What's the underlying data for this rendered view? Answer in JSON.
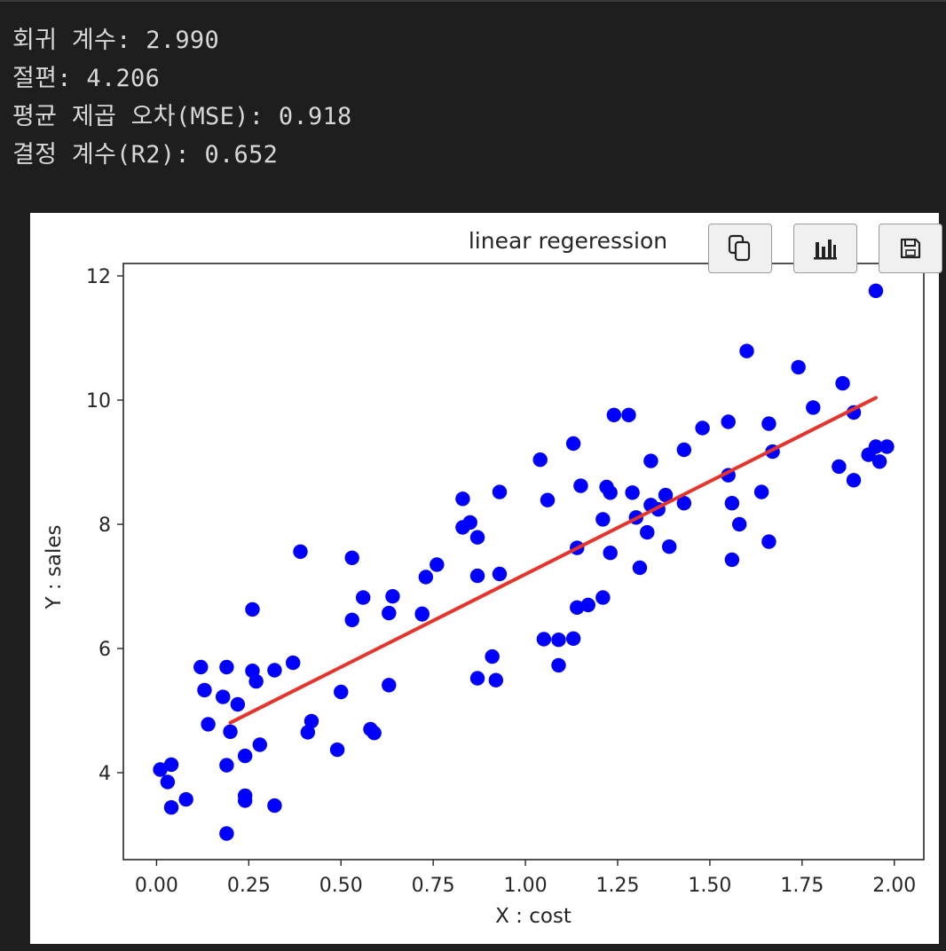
{
  "output": {
    "lines": [
      "회귀 계수: 2.990",
      "절편: 4.206",
      "평균 제곱 오차(MSE): 0.918",
      "결정 계수(R2): 0.652"
    ]
  },
  "toolbar": {
    "icons": [
      "copy-icon",
      "chart-icon",
      "save-icon"
    ]
  },
  "colors": {
    "background": "#1e1e1e",
    "text": "#d8d8d8",
    "points": "#0000ff",
    "line": "#e8332a"
  },
  "chart_data": {
    "type": "scatter",
    "title": "linear regeression",
    "xlabel": "X : cost",
    "ylabel": "Y : sales",
    "xlim": [
      -0.09,
      2.08
    ],
    "ylim": [
      2.6,
      12.2
    ],
    "xticks": [
      "0.00",
      "0.25",
      "0.50",
      "0.75",
      "1.00",
      "1.25",
      "1.50",
      "1.75",
      "2.00"
    ],
    "xtick_values": [
      0,
      0.25,
      0.5,
      0.75,
      1.0,
      1.25,
      1.5,
      1.75,
      2.0
    ],
    "yticks": [
      "4",
      "6",
      "8",
      "10",
      "12"
    ],
    "ytick_values": [
      4,
      6,
      8,
      10,
      12
    ],
    "grid": false,
    "series": [
      {
        "kind": "points",
        "color": "#0000ff",
        "x": [
          0.01,
          0.04,
          0.04,
          0.03,
          0.08,
          0.12,
          0.13,
          0.14,
          0.18,
          0.19,
          0.19,
          0.19,
          0.2,
          0.22,
          0.24,
          0.24,
          0.24,
          0.26,
          0.26,
          0.27,
          0.28,
          0.32,
          0.32,
          0.37,
          0.39,
          0.41,
          0.42,
          0.49,
          0.5,
          0.53,
          0.53,
          0.56,
          0.58,
          0.59,
          0.63,
          0.63,
          0.64,
          0.72,
          0.72,
          0.73,
          0.76,
          0.83,
          0.83,
          0.85,
          0.87,
          0.87,
          0.87,
          0.91,
          0.92,
          0.93,
          0.93,
          1.04,
          1.05,
          1.06,
          1.09,
          1.09,
          1.13,
          1.13,
          1.14,
          1.14,
          1.15,
          1.17,
          1.21,
          1.21,
          1.22,
          1.23,
          1.23,
          1.24,
          1.28,
          1.29,
          1.3,
          1.31,
          1.33,
          1.34,
          1.34,
          1.36,
          1.38,
          1.39,
          1.43,
          1.43,
          1.48,
          1.55,
          1.55,
          1.56,
          1.56,
          1.58,
          1.6,
          1.64,
          1.66,
          1.66,
          1.67,
          1.74,
          1.78,
          1.85,
          1.86,
          1.89,
          1.89,
          1.93,
          1.95,
          1.95,
          1.96,
          1.98
        ],
        "y": [
          4.05,
          4.13,
          3.44,
          3.85,
          3.57,
          5.7,
          5.33,
          4.78,
          5.22,
          3.02,
          4.12,
          5.7,
          4.66,
          5.1,
          4.27,
          3.55,
          3.63,
          5.64,
          6.63,
          5.47,
          4.45,
          3.47,
          5.65,
          5.77,
          7.56,
          4.65,
          4.83,
          4.37,
          5.3,
          7.46,
          6.46,
          6.82,
          4.7,
          4.64,
          6.57,
          5.41,
          6.84,
          6.56,
          6.55,
          7.15,
          7.35,
          7.95,
          8.41,
          8.03,
          7.79,
          5.52,
          7.17,
          5.87,
          5.49,
          7.2,
          8.52,
          9.04,
          6.15,
          8.39,
          6.14,
          5.73,
          6.16,
          9.3,
          6.66,
          7.62,
          8.62,
          6.7,
          6.82,
          8.08,
          8.6,
          7.54,
          8.51,
          9.76,
          9.76,
          8.51,
          8.11,
          7.3,
          7.87,
          8.31,
          9.02,
          8.24,
          8.47,
          7.64,
          9.2,
          8.34,
          9.55,
          8.79,
          9.65,
          8.34,
          7.43,
          8.0,
          10.79,
          8.52,
          7.72,
          9.62,
          9.17,
          10.53,
          9.88,
          8.93,
          10.27,
          8.71,
          9.8,
          9.12,
          11.76,
          9.25,
          9.01,
          9.25
        ]
      },
      {
        "kind": "line",
        "color": "#e8332a",
        "x": [
          0.2,
          1.95
        ],
        "y": [
          4.804,
          10.037
        ]
      }
    ]
  }
}
